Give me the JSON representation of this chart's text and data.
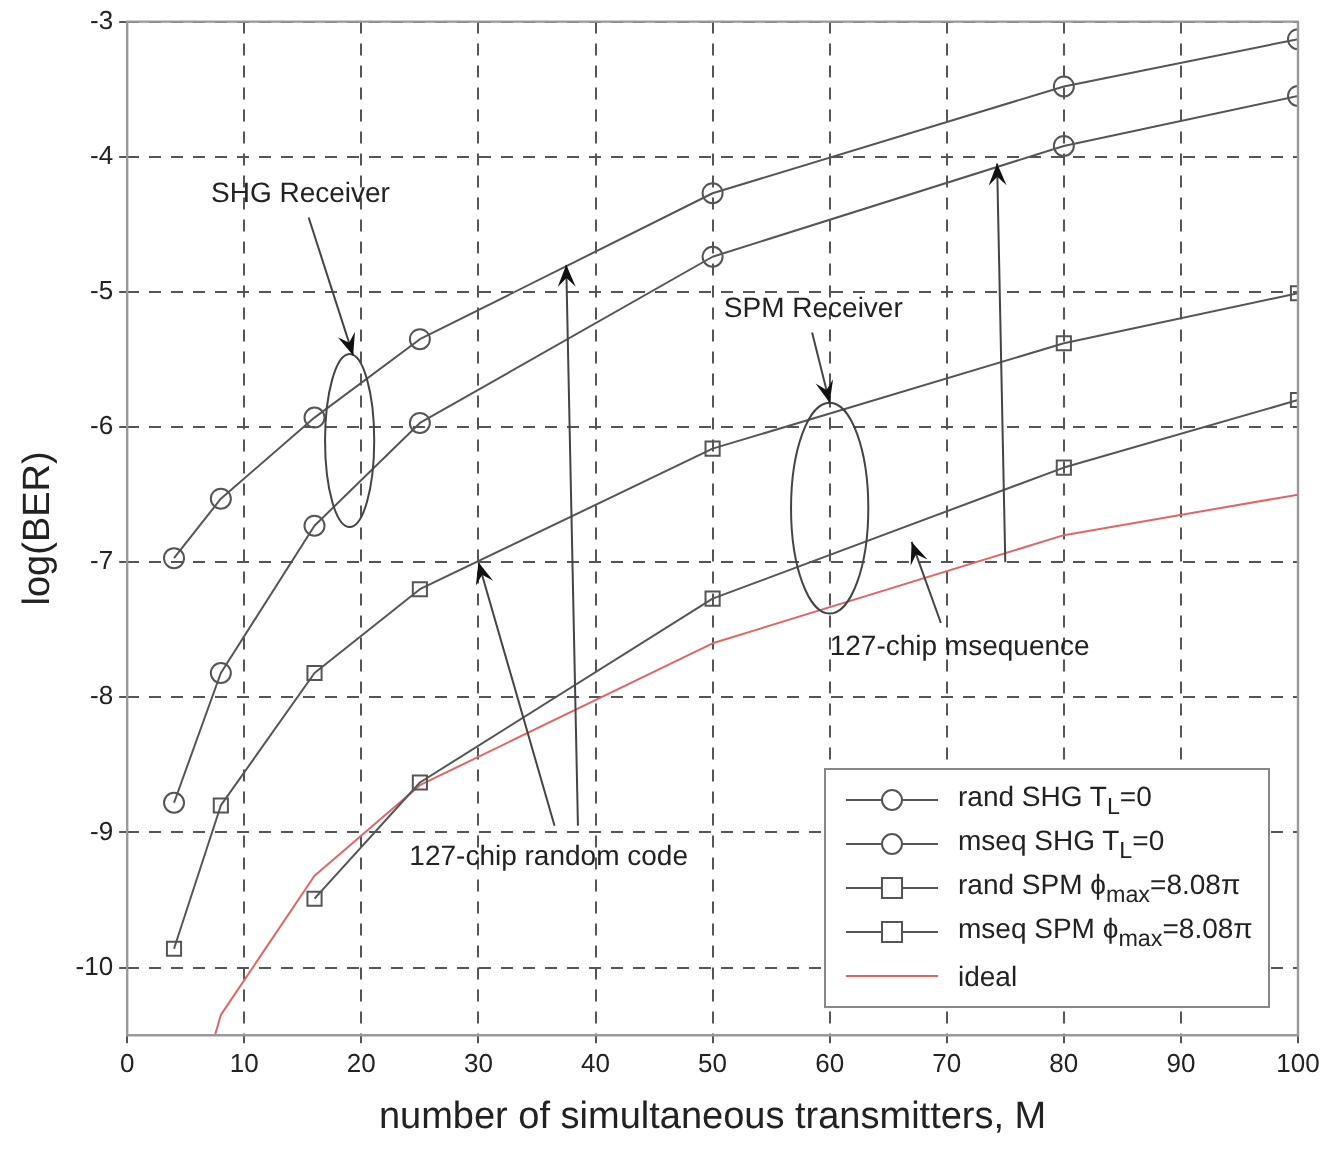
{
  "chart_data": {
    "type": "line",
    "xlabel": "number of simultaneous transmitters, M",
    "ylabel": "log(BER)",
    "xlim": [
      0,
      100
    ],
    "xticks": [
      0,
      10,
      20,
      30,
      40,
      50,
      60,
      70,
      80,
      90,
      100
    ],
    "ylim": [
      -10.5,
      -3
    ],
    "yticks": [
      -10,
      -9,
      -8,
      -7,
      -6,
      -5,
      -4,
      -3
    ],
    "grid": true,
    "legend": "bottom right",
    "line_style": "solid",
    "series": [
      {
        "name": "rand SHG T$_{L}$=0",
        "color": "#555555",
        "marker": "circle",
        "x": [
          4,
          8,
          16,
          25,
          50,
          80,
          100
        ],
        "values": [
          -6.97,
          -6.53,
          -5.93,
          -5.35,
          -4.27,
          -3.48,
          -3.13
        ]
      },
      {
        "name": "mseq SHG T$_{L}$=0",
        "color": "#555555",
        "marker": "circle",
        "x": [
          4,
          8,
          16,
          25,
          50,
          80,
          100
        ],
        "values": [
          -8.78,
          -7.82,
          -6.73,
          -5.97,
          -4.74,
          -3.92,
          -3.55
        ]
      },
      {
        "name": "rand SPM ϕ$_{max}$=8.08π",
        "color": "#555555",
        "marker": "square",
        "x": [
          4,
          8,
          16,
          25,
          50,
          80,
          100
        ],
        "values": [
          -9.86,
          -8.8,
          -7.82,
          -7.2,
          -6.16,
          -5.38,
          -5.01
        ]
      },
      {
        "name": "mseq SPM ϕ$_{max}$=8.08π",
        "color": "#555555",
        "marker": "square",
        "x": [
          16,
          25,
          50,
          80,
          100
        ],
        "values": [
          -9.49,
          -8.63,
          -7.27,
          -6.3,
          -5.8
        ]
      },
      {
        "name": "ideal",
        "color": "#e06666",
        "marker": "none",
        "x": [
          7.5,
          8,
          16,
          25,
          50,
          80,
          100
        ],
        "values": [
          -10.5,
          -10.35,
          -9.32,
          -8.65,
          -7.6,
          -6.8,
          -6.5
        ]
      }
    ],
    "annotations": [
      "SHG Receiver",
      "SPM Receiver",
      {
        "text": "127-chip random code",
        "x": 30,
        "y": -7
      },
      "127-chip msequence"
    ]
  }
}
